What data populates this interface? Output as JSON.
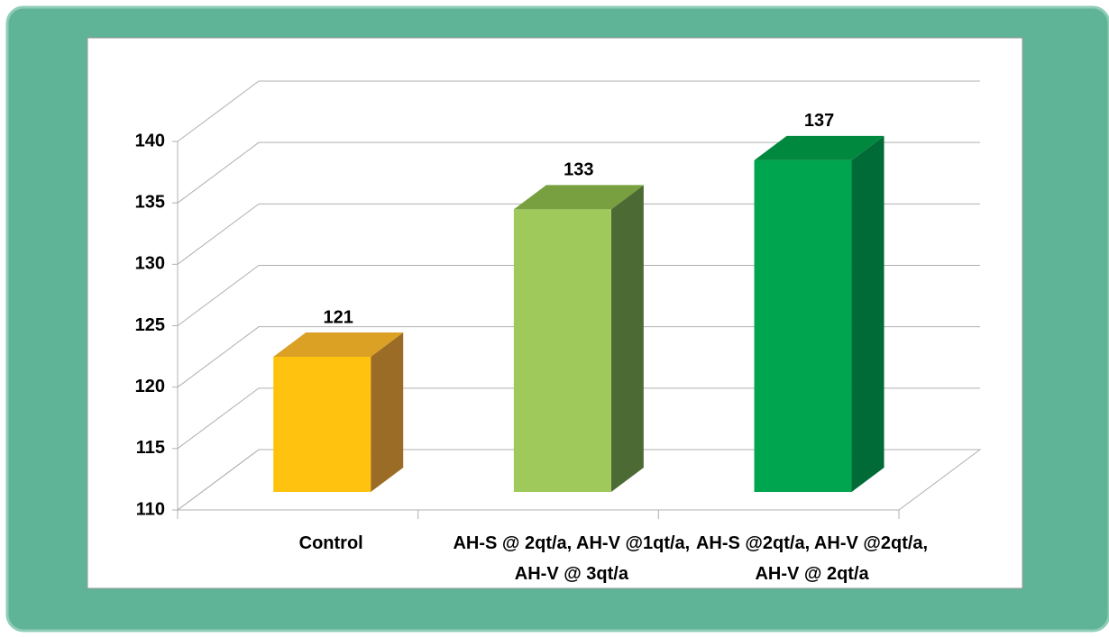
{
  "chart_data": {
    "type": "bar3d",
    "categories": [
      "Control",
      "AH-S @ 2qt/a, AH-V @1qt/a, AH-V @ 3qt/a",
      "AH-S @2qt/a, AH-V @2qt/a, AH-V @ 2qt/a"
    ],
    "values": [
      121,
      133,
      137
    ],
    "colors": [
      "#ffc20e",
      "#9fc95a",
      "#00a550"
    ],
    "side_colors": [
      "#9b6c26",
      "#4c6b34",
      "#006b36"
    ],
    "top_colors": [
      "#dba125",
      "#78a040",
      "#00893e"
    ],
    "ylim": [
      110,
      140
    ],
    "yticks": [
      110,
      115,
      120,
      125,
      130,
      135,
      140
    ],
    "grid": true
  }
}
